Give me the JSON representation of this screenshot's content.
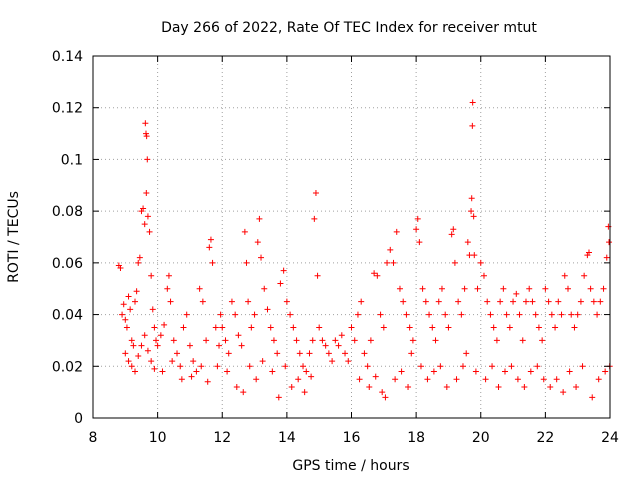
{
  "chart_data": {
    "type": "scatter",
    "title": "Day 266 of 2022, Rate Of TEC Index for receiver mtut",
    "xlabel": "GPS time / hours",
    "ylabel": "ROTI / TECUs",
    "xlim": [
      8,
      24
    ],
    "ylim": [
      0,
      0.14
    ],
    "xticks": [
      8,
      10,
      12,
      14,
      16,
      18,
      20,
      22,
      24
    ],
    "xtick_labels": [
      "8",
      "10",
      "12",
      "14",
      "16",
      "18",
      "20",
      "22",
      "24"
    ],
    "yticks": [
      0,
      0.02,
      0.04,
      0.06,
      0.08,
      0.1,
      0.12,
      0.14
    ],
    "ytick_labels": [
      "0",
      "0.02",
      "0.04",
      "0.06",
      "0.08",
      "0.1",
      "0.12",
      "0.14"
    ],
    "grid": true,
    "marker": "plus",
    "color": "#ff0000",
    "series": [
      {
        "name": "ROTI",
        "points": [
          [
            8.8,
            0.059
          ],
          [
            8.85,
            0.058
          ],
          [
            8.9,
            0.04
          ],
          [
            8.95,
            0.044
          ],
          [
            9.0,
            0.038
          ],
          [
            9.05,
            0.035
          ],
          [
            9.1,
            0.047
          ],
          [
            9.15,
            0.042
          ],
          [
            9.2,
            0.03
          ],
          [
            9.25,
            0.028
          ],
          [
            9.3,
            0.045
          ],
          [
            9.35,
            0.049
          ],
          [
            9.4,
            0.06
          ],
          [
            9.45,
            0.062
          ],
          [
            9.5,
            0.08
          ],
          [
            9.55,
            0.081
          ],
          [
            9.6,
            0.075
          ],
          [
            9.62,
            0.114
          ],
          [
            9.64,
            0.11
          ],
          [
            9.66,
            0.109
          ],
          [
            9.68,
            0.1
          ],
          [
            9.65,
            0.087
          ],
          [
            9.7,
            0.078
          ],
          [
            9.75,
            0.072
          ],
          [
            9.8,
            0.055
          ],
          [
            9.85,
            0.042
          ],
          [
            9.9,
            0.035
          ],
          [
            9.95,
            0.03
          ],
          [
            9.0,
            0.025
          ],
          [
            9.1,
            0.022
          ],
          [
            9.2,
            0.02
          ],
          [
            9.3,
            0.018
          ],
          [
            9.4,
            0.024
          ],
          [
            9.5,
            0.028
          ],
          [
            9.6,
            0.032
          ],
          [
            9.7,
            0.026
          ],
          [
            9.8,
            0.022
          ],
          [
            9.9,
            0.019
          ],
          [
            10.0,
            0.028
          ],
          [
            10.1,
            0.032
          ],
          [
            10.2,
            0.036
          ],
          [
            10.3,
            0.05
          ],
          [
            10.35,
            0.055
          ],
          [
            10.4,
            0.045
          ],
          [
            10.5,
            0.03
          ],
          [
            10.6,
            0.025
          ],
          [
            10.7,
            0.02
          ],
          [
            10.8,
            0.035
          ],
          [
            10.9,
            0.04
          ],
          [
            11.0,
            0.028
          ],
          [
            11.1,
            0.022
          ],
          [
            11.2,
            0.018
          ],
          [
            11.3,
            0.05
          ],
          [
            11.4,
            0.045
          ],
          [
            11.5,
            0.03
          ],
          [
            11.6,
            0.066
          ],
          [
            11.65,
            0.069
          ],
          [
            11.7,
            0.06
          ],
          [
            11.8,
            0.035
          ],
          [
            11.9,
            0.028
          ],
          [
            10.15,
            0.018
          ],
          [
            10.45,
            0.022
          ],
          [
            10.75,
            0.015
          ],
          [
            11.05,
            0.016
          ],
          [
            11.35,
            0.02
          ],
          [
            11.55,
            0.014
          ],
          [
            11.85,
            0.02
          ],
          [
            11.95,
            0.04
          ],
          [
            12.0,
            0.035
          ],
          [
            12.1,
            0.03
          ],
          [
            12.2,
            0.025
          ],
          [
            12.3,
            0.045
          ],
          [
            12.4,
            0.04
          ],
          [
            12.5,
            0.032
          ],
          [
            12.6,
            0.028
          ],
          [
            12.7,
            0.072
          ],
          [
            12.75,
            0.06
          ],
          [
            12.8,
            0.045
          ],
          [
            12.9,
            0.035
          ],
          [
            13.0,
            0.04
          ],
          [
            13.1,
            0.068
          ],
          [
            13.15,
            0.077
          ],
          [
            13.2,
            0.062
          ],
          [
            13.3,
            0.05
          ],
          [
            13.4,
            0.042
          ],
          [
            13.5,
            0.035
          ],
          [
            13.6,
            0.03
          ],
          [
            13.7,
            0.025
          ],
          [
            13.8,
            0.052
          ],
          [
            13.9,
            0.057
          ],
          [
            12.15,
            0.018
          ],
          [
            12.45,
            0.012
          ],
          [
            12.65,
            0.01
          ],
          [
            12.85,
            0.02
          ],
          [
            13.05,
            0.015
          ],
          [
            13.25,
            0.022
          ],
          [
            13.55,
            0.018
          ],
          [
            13.75,
            0.008
          ],
          [
            13.95,
            0.02
          ],
          [
            14.0,
            0.045
          ],
          [
            14.1,
            0.04
          ],
          [
            14.2,
            0.035
          ],
          [
            14.3,
            0.03
          ],
          [
            14.4,
            0.025
          ],
          [
            14.5,
            0.02
          ],
          [
            14.6,
            0.018
          ],
          [
            14.7,
            0.025
          ],
          [
            14.8,
            0.03
          ],
          [
            14.85,
            0.077
          ],
          [
            14.9,
            0.087
          ],
          [
            14.95,
            0.055
          ],
          [
            15.0,
            0.035
          ],
          [
            15.1,
            0.03
          ],
          [
            15.2,
            0.028
          ],
          [
            15.3,
            0.025
          ],
          [
            15.4,
            0.022
          ],
          [
            15.5,
            0.03
          ],
          [
            15.6,
            0.028
          ],
          [
            15.7,
            0.032
          ],
          [
            15.8,
            0.025
          ],
          [
            15.9,
            0.022
          ],
          [
            14.15,
            0.012
          ],
          [
            14.35,
            0.015
          ],
          [
            14.55,
            0.01
          ],
          [
            14.75,
            0.016
          ],
          [
            16.0,
            0.035
          ],
          [
            16.1,
            0.03
          ],
          [
            16.2,
            0.04
          ],
          [
            16.3,
            0.045
          ],
          [
            16.4,
            0.025
          ],
          [
            16.5,
            0.02
          ],
          [
            16.6,
            0.03
          ],
          [
            16.7,
            0.056
          ],
          [
            16.8,
            0.055
          ],
          [
            16.9,
            0.04
          ],
          [
            17.0,
            0.035
          ],
          [
            17.1,
            0.06
          ],
          [
            17.2,
            0.065
          ],
          [
            17.3,
            0.06
          ],
          [
            17.4,
            0.072
          ],
          [
            17.5,
            0.05
          ],
          [
            17.6,
            0.045
          ],
          [
            17.7,
            0.04
          ],
          [
            17.8,
            0.035
          ],
          [
            17.9,
            0.03
          ],
          [
            16.25,
            0.015
          ],
          [
            16.55,
            0.012
          ],
          [
            16.75,
            0.016
          ],
          [
            16.95,
            0.01
          ],
          [
            17.05,
            0.008
          ],
          [
            17.35,
            0.015
          ],
          [
            17.55,
            0.018
          ],
          [
            17.75,
            0.012
          ],
          [
            17.85,
            0.025
          ],
          [
            18.0,
            0.073
          ],
          [
            18.05,
            0.077
          ],
          [
            18.1,
            0.068
          ],
          [
            18.2,
            0.05
          ],
          [
            18.3,
            0.045
          ],
          [
            18.4,
            0.04
          ],
          [
            18.5,
            0.035
          ],
          [
            18.6,
            0.03
          ],
          [
            18.7,
            0.045
          ],
          [
            18.8,
            0.05
          ],
          [
            18.9,
            0.04
          ],
          [
            19.0,
            0.035
          ],
          [
            19.1,
            0.071
          ],
          [
            19.15,
            0.073
          ],
          [
            19.2,
            0.06
          ],
          [
            19.3,
            0.045
          ],
          [
            19.4,
            0.04
          ],
          [
            19.5,
            0.05
          ],
          [
            19.6,
            0.068
          ],
          [
            19.65,
            0.063
          ],
          [
            19.7,
            0.08
          ],
          [
            19.72,
            0.085
          ],
          [
            19.75,
            0.122
          ],
          [
            19.74,
            0.113
          ],
          [
            19.78,
            0.078
          ],
          [
            19.8,
            0.063
          ],
          [
            19.9,
            0.05
          ],
          [
            18.15,
            0.02
          ],
          [
            18.35,
            0.015
          ],
          [
            18.55,
            0.018
          ],
          [
            18.75,
            0.02
          ],
          [
            18.95,
            0.012
          ],
          [
            19.25,
            0.015
          ],
          [
            19.45,
            0.02
          ],
          [
            19.55,
            0.025
          ],
          [
            19.85,
            0.018
          ],
          [
            20.0,
            0.06
          ],
          [
            20.1,
            0.055
          ],
          [
            20.2,
            0.045
          ],
          [
            20.3,
            0.04
          ],
          [
            20.4,
            0.035
          ],
          [
            20.5,
            0.03
          ],
          [
            20.6,
            0.045
          ],
          [
            20.7,
            0.05
          ],
          [
            20.8,
            0.04
          ],
          [
            20.9,
            0.035
          ],
          [
            21.0,
            0.045
          ],
          [
            21.1,
            0.048
          ],
          [
            21.2,
            0.04
          ],
          [
            21.3,
            0.03
          ],
          [
            21.4,
            0.045
          ],
          [
            21.5,
            0.05
          ],
          [
            21.6,
            0.045
          ],
          [
            21.7,
            0.04
          ],
          [
            21.8,
            0.035
          ],
          [
            21.9,
            0.03
          ],
          [
            20.15,
            0.015
          ],
          [
            20.35,
            0.02
          ],
          [
            20.55,
            0.012
          ],
          [
            20.75,
            0.018
          ],
          [
            20.95,
            0.02
          ],
          [
            21.15,
            0.015
          ],
          [
            21.35,
            0.012
          ],
          [
            21.55,
            0.018
          ],
          [
            21.75,
            0.02
          ],
          [
            21.95,
            0.015
          ],
          [
            22.0,
            0.05
          ],
          [
            22.1,
            0.045
          ],
          [
            22.2,
            0.04
          ],
          [
            22.3,
            0.035
          ],
          [
            22.4,
            0.045
          ],
          [
            22.5,
            0.04
          ],
          [
            22.6,
            0.055
          ],
          [
            22.7,
            0.05
          ],
          [
            22.8,
            0.04
          ],
          [
            22.9,
            0.035
          ],
          [
            23.0,
            0.04
          ],
          [
            23.1,
            0.045
          ],
          [
            23.2,
            0.055
          ],
          [
            23.3,
            0.063
          ],
          [
            23.35,
            0.064
          ],
          [
            23.4,
            0.05
          ],
          [
            23.5,
            0.045
          ],
          [
            23.6,
            0.04
          ],
          [
            23.7,
            0.045
          ],
          [
            23.8,
            0.05
          ],
          [
            23.9,
            0.062
          ],
          [
            23.95,
            0.074
          ],
          [
            23.97,
            0.068
          ],
          [
            22.15,
            0.012
          ],
          [
            22.35,
            0.015
          ],
          [
            22.55,
            0.01
          ],
          [
            22.75,
            0.018
          ],
          [
            22.95,
            0.012
          ],
          [
            23.15,
            0.02
          ],
          [
            23.45,
            0.008
          ],
          [
            23.65,
            0.015
          ],
          [
            23.85,
            0.018
          ],
          [
            23.99,
            0.02
          ]
        ]
      }
    ]
  }
}
